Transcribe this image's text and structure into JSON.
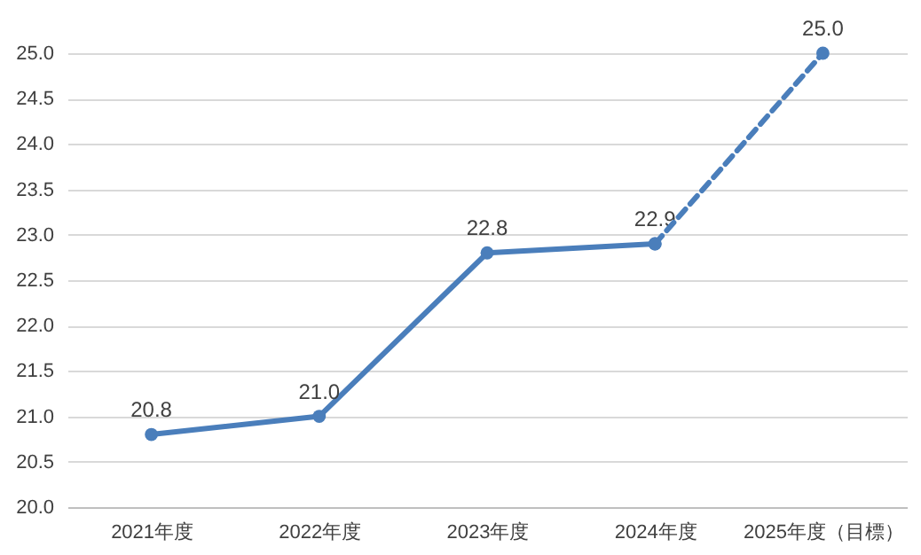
{
  "chart_data": {
    "type": "line",
    "categories": [
      "2021年度",
      "2022年度",
      "2023年度",
      "2024年度",
      "2025年度（目標）"
    ],
    "series": [
      {
        "color": "#4a7ebb",
        "line_style": "solid",
        "values": [
          20.8,
          21.0,
          22.8,
          22.9,
          null
        ],
        "value_labels": [
          "20.8",
          "21.0",
          "22.8",
          "22.9",
          null
        ]
      },
      {
        "color": "#4a7ebb",
        "line_style": "dashed",
        "values": [
          null,
          null,
          null,
          22.9,
          25.0
        ],
        "value_labels": [
          null,
          null,
          null,
          null,
          "25.0"
        ]
      }
    ],
    "ylim": [
      20,
      25
    ],
    "yticks": [
      {
        "value": 20,
        "label": "20.0"
      },
      {
        "value": 20.5,
        "label": "20.5"
      },
      {
        "value": 21,
        "label": "21.0"
      },
      {
        "value": 21.5,
        "label": "21.5"
      },
      {
        "value": 22,
        "label": "22.0"
      },
      {
        "value": 22.5,
        "label": "22.5"
      },
      {
        "value": 23,
        "label": "23.0"
      },
      {
        "value": 23.5,
        "label": "23.5"
      },
      {
        "value": 24,
        "label": "24.0"
      },
      {
        "value": 24.5,
        "label": "24.5"
      },
      {
        "value": 25,
        "label": "25.0"
      }
    ],
    "grid": "y",
    "marker": "circle"
  }
}
